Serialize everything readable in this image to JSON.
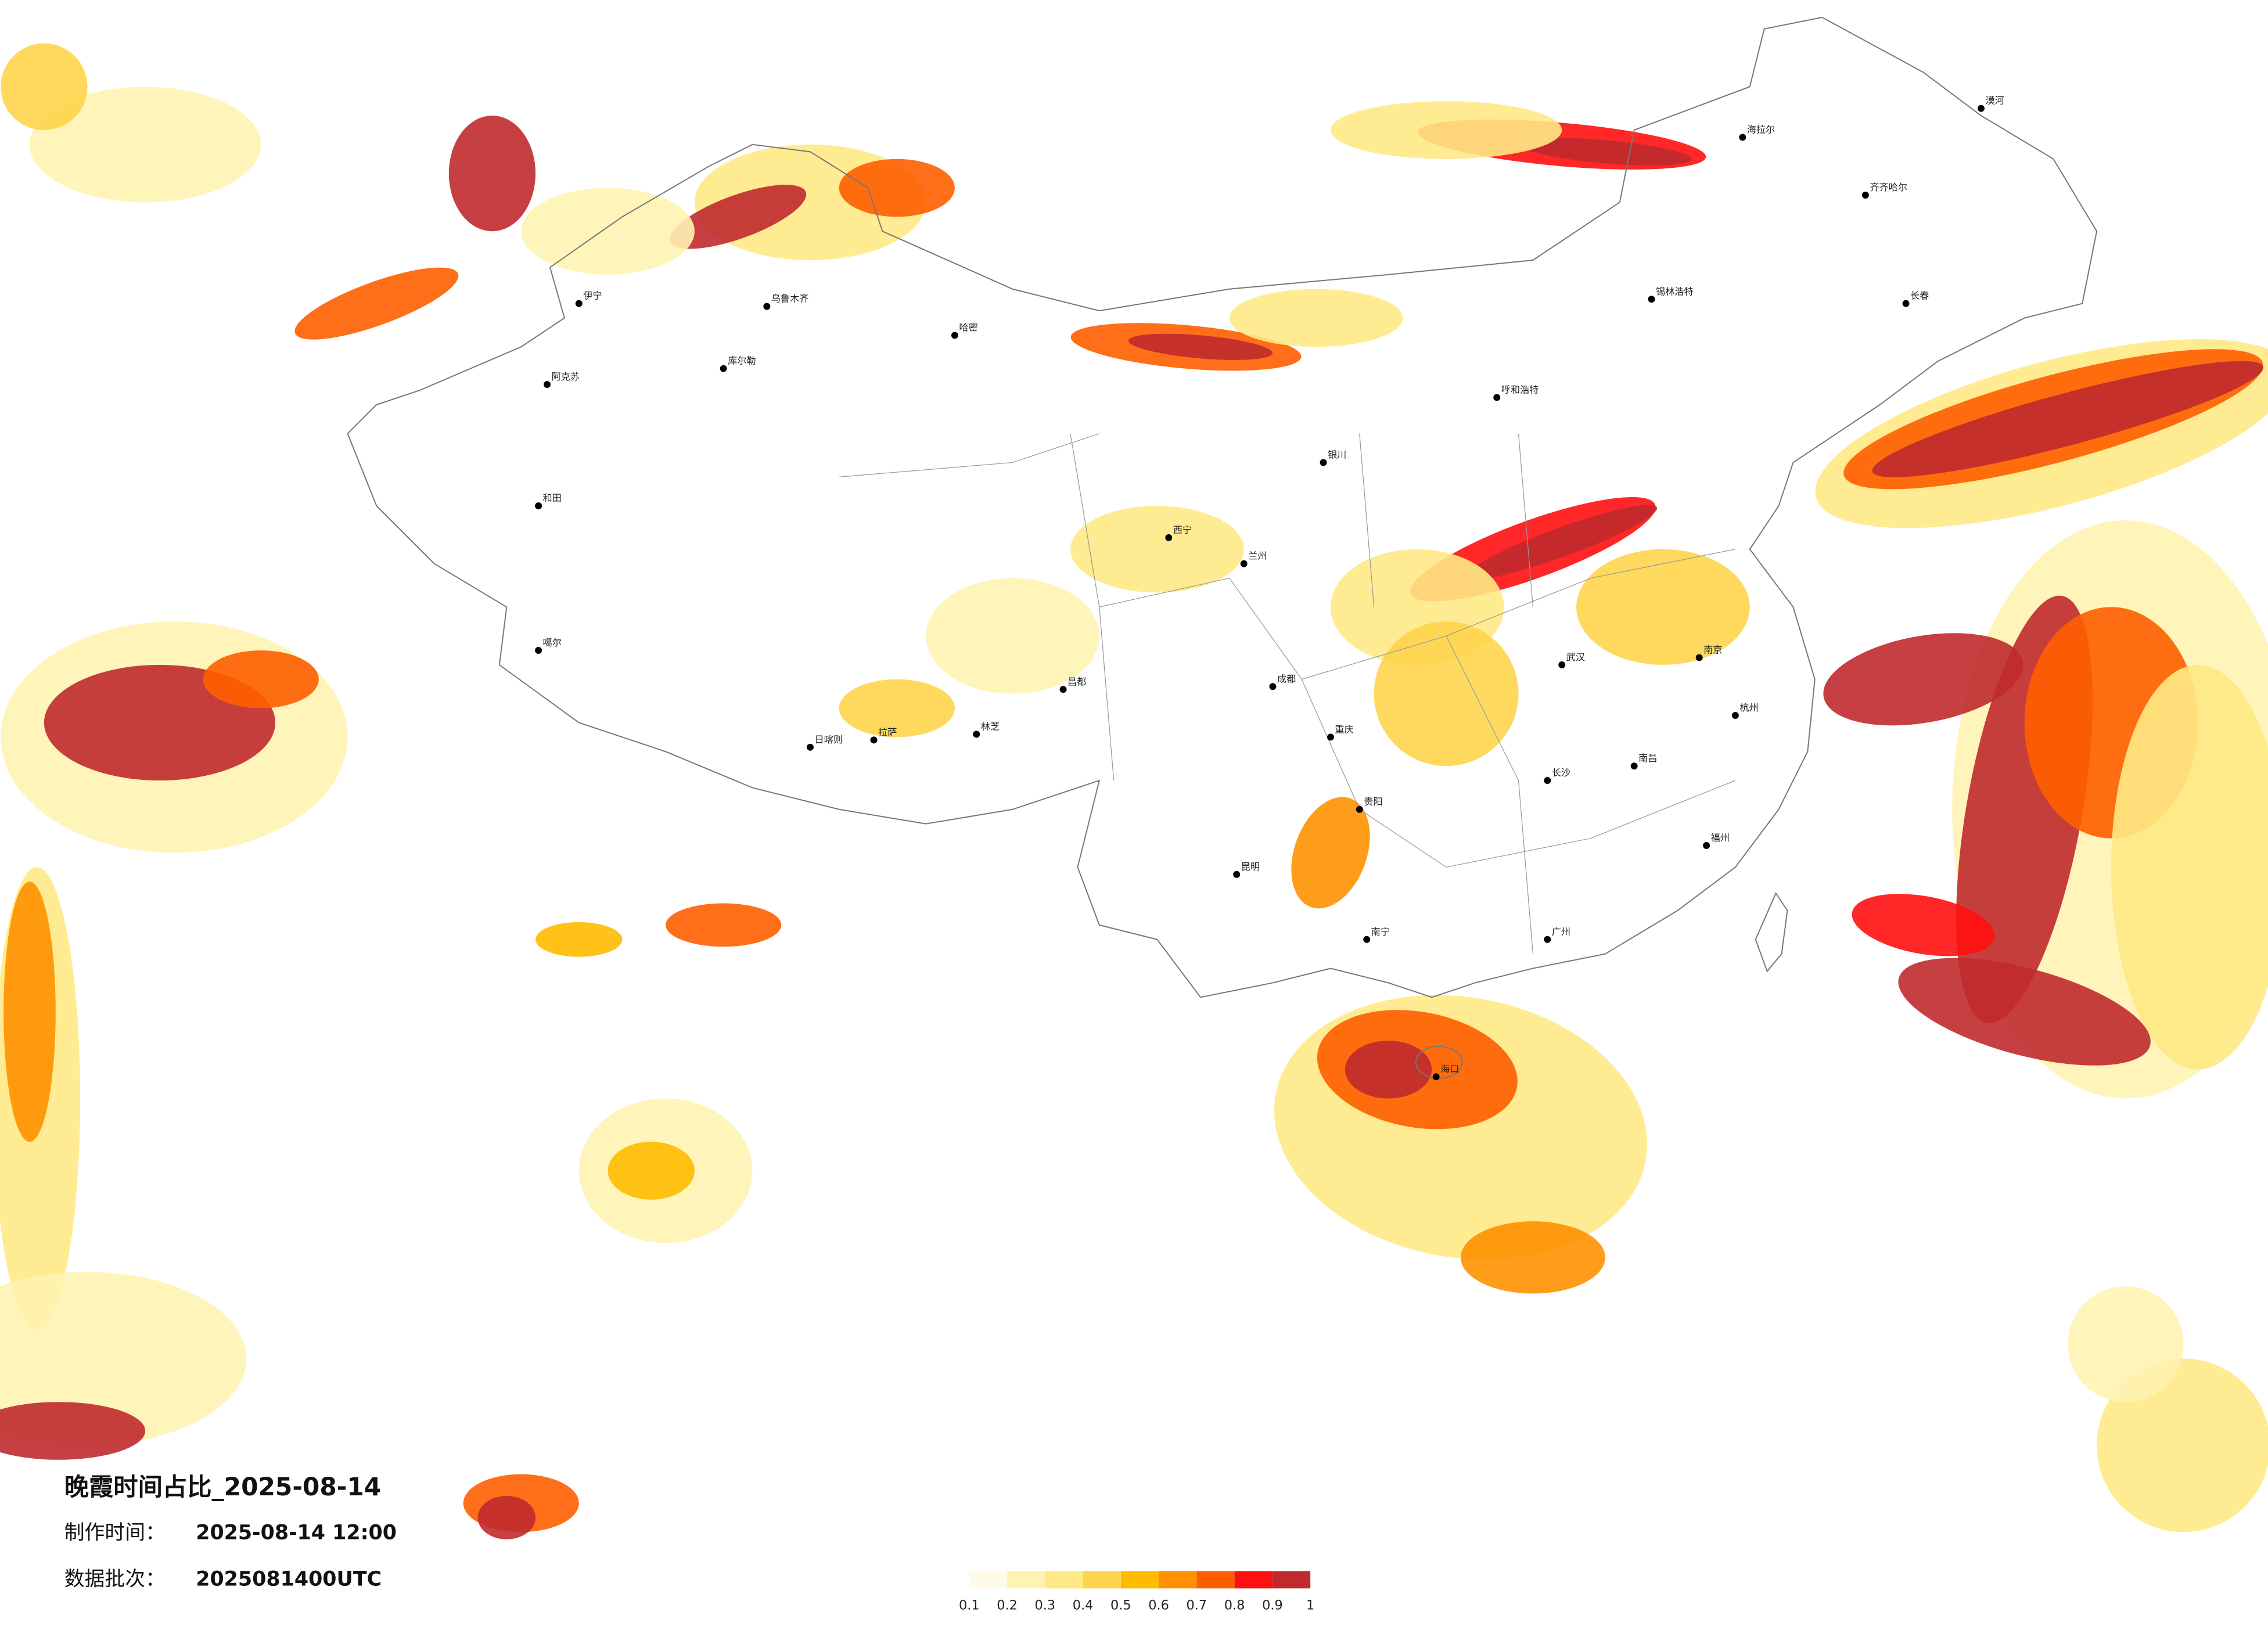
{
  "header": {
    "title": "晚霞时间占比_2025-08-14"
  },
  "info": [
    {
      "label": "制作时间：",
      "value": "2025-08-14 12:00"
    },
    {
      "label": "数据批次：",
      "value": "2025081400UTC"
    }
  ],
  "legend": {
    "bins": [
      0.1,
      0.2,
      0.3,
      0.4,
      0.5,
      0.6,
      0.7,
      0.8,
      0.9,
      1
    ],
    "colors": [
      "#fffbe6",
      "#fff3b3",
      "#ffe985",
      "#ffd44d",
      "#ffbb00",
      "#ff9100",
      "#ff5e00",
      "#ff1010",
      "#c02a2e"
    ]
  },
  "cities": [
    "乌鲁木齐",
    "库尔勒",
    "阿克苏",
    "和田",
    "伊宁",
    "哈密",
    "噶尔",
    "日喀则",
    "拉萨",
    "林芝",
    "昌都",
    "西宁",
    "兰州",
    "银川",
    "呼和浩特",
    "锡林浩特",
    "海拉尔",
    "漠河",
    "齐齐哈尔",
    "长春",
    "成都",
    "重庆",
    "昆明",
    "贵阳",
    "南宁",
    "广州",
    "长沙",
    "武汉",
    "南昌",
    "南京",
    "杭州",
    "福州",
    "海口"
  ]
}
